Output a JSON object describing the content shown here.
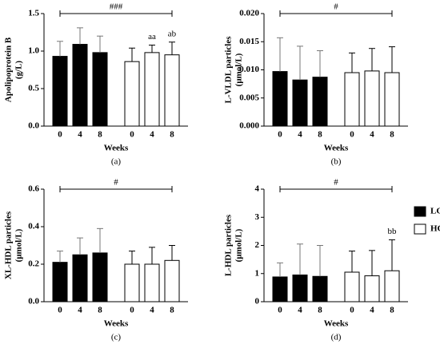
{
  "chart_data": [
    {
      "type": "bar",
      "ylabel": [
        "Apolipoprotein B",
        "(g/L)"
      ],
      "xlabel": "Weeks",
      "panel": "(a)",
      "bracket": "###",
      "categories": [
        "0",
        "4",
        "8",
        "0",
        "4",
        "8"
      ],
      "series": [
        {
          "name": "LCHF",
          "color": "#000000",
          "values": [
            0.93,
            1.09,
            0.98,
            null,
            null,
            null
          ],
          "errors": [
            0.2,
            0.22,
            0.22,
            null,
            null,
            null
          ]
        },
        {
          "name": "HCLF",
          "color": "#ffffff",
          "values": [
            null,
            null,
            null,
            0.86,
            0.98,
            0.95
          ],
          "errors": [
            null,
            null,
            null,
            0.18,
            0.1,
            0.17
          ]
        }
      ],
      "annotations": [
        null,
        null,
        null,
        null,
        "aa",
        "ab"
      ],
      "ylim": [
        0,
        1.5
      ],
      "yticks": [
        {
          "value": 0,
          "label": "0.0"
        },
        0.5,
        {
          "value": 1,
          "label": "1.0"
        },
        1.5
      ]
    },
    {
      "type": "bar",
      "ylabel": [
        "L-VLDL particles",
        "(μmol/L)"
      ],
      "xlabel": "Weeks",
      "panel": "(b)",
      "bracket": "#",
      "categories": [
        "0",
        "4",
        "8",
        "0",
        "4",
        "8"
      ],
      "series": [
        {
          "name": "LCHF",
          "color": "#000000",
          "values": [
            0.0097,
            0.0082,
            0.0087,
            null,
            null,
            null
          ],
          "errors": [
            0.006,
            0.006,
            0.0047,
            null,
            null,
            null
          ]
        },
        {
          "name": "HCLF",
          "color": "#ffffff",
          "values": [
            null,
            null,
            null,
            0.0095,
            0.0098,
            0.0095
          ],
          "errors": [
            null,
            null,
            null,
            0.0035,
            0.004,
            0.0046
          ]
        }
      ],
      "ylim": [
        0,
        0.02
      ],
      "yticks": [
        {
          "value": 0,
          "label": "0.000"
        },
        {
          "value": 0.005,
          "label": "0.005"
        },
        {
          "value": 0.01,
          "label": "0.010"
        },
        {
          "value": 0.015,
          "label": "0.015"
        },
        {
          "value": 0.02,
          "label": "0.020"
        }
      ]
    },
    {
      "type": "bar",
      "ylabel": [
        "XL-HDL particles",
        "(μmol/L)"
      ],
      "xlabel": "Weeks",
      "panel": "(c)",
      "bracket": "#",
      "categories": [
        "0",
        "4",
        "8",
        "0",
        "4",
        "8"
      ],
      "series": [
        {
          "name": "LCHF",
          "color": "#000000",
          "values": [
            0.21,
            0.25,
            0.26,
            null,
            null,
            null
          ],
          "errors": [
            0.06,
            0.09,
            0.13,
            null,
            null,
            null
          ]
        },
        {
          "name": "HCLF",
          "color": "#ffffff",
          "values": [
            null,
            null,
            null,
            0.2,
            0.2,
            0.22
          ],
          "errors": [
            null,
            null,
            null,
            0.07,
            0.09,
            0.08
          ]
        }
      ],
      "ylim": [
        0,
        0.6
      ],
      "yticks": [
        {
          "value": 0,
          "label": "0.0"
        },
        0.2,
        0.4,
        0.6
      ]
    },
    {
      "type": "bar",
      "ylabel": [
        "L-HDL particles",
        "(μmol/L)"
      ],
      "xlabel": "Weeks",
      "panel": "(d)",
      "bracket": "#",
      "categories": [
        "0",
        "4",
        "8",
        "0",
        "4",
        "8"
      ],
      "series": [
        {
          "name": "LCHF",
          "color": "#000000",
          "values": [
            0.88,
            0.95,
            0.9,
            null,
            null,
            null
          ],
          "errors": [
            0.5,
            1.1,
            1.1,
            null,
            null,
            null
          ]
        },
        {
          "name": "HCLF",
          "color": "#ffffff",
          "values": [
            null,
            null,
            null,
            1.05,
            0.92,
            1.1
          ],
          "errors": [
            null,
            null,
            null,
            0.75,
            0.9,
            1.1
          ]
        }
      ],
      "annotations": [
        null,
        null,
        null,
        null,
        null,
        "bb"
      ],
      "legend": "right",
      "ylim": [
        0,
        4
      ],
      "yticks": [
        0,
        1,
        2,
        3,
        4
      ]
    }
  ]
}
